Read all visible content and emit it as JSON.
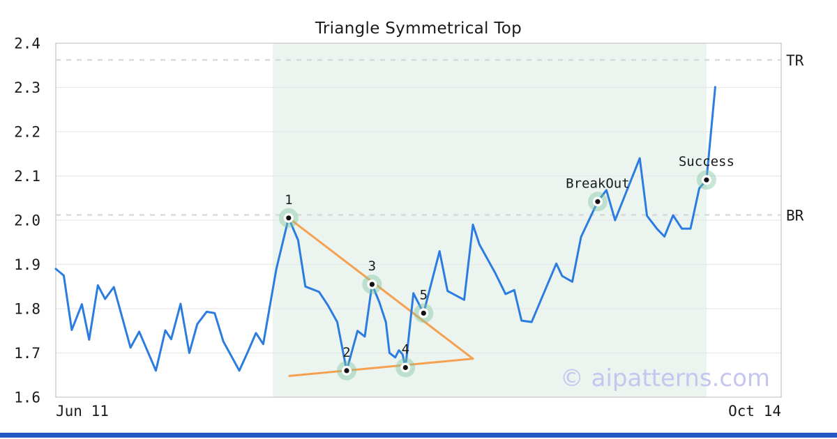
{
  "title": "Triangle Symmetrical Top",
  "watermark": "© aipatterns.com",
  "colors": {
    "price_line": "#2b7ce0",
    "trendline": "#f6a14f",
    "pattern_region": "#ebf4ef",
    "marker_halo": "rgba(124,195,158,0.42)",
    "marker_ring": "#ffffff",
    "marker_dot": "#111111",
    "gridline": "#e8e8e8",
    "plot_border": "#d0d0d0",
    "level_dash": "#d8d8d8",
    "text": "#1a1a1a",
    "watermark_text": "#c5c5f0",
    "footer_bar": "#2257c4"
  },
  "chart_data": {
    "type": "line",
    "title": "Triangle Symmetrical Top",
    "grid": true,
    "legend": false,
    "x_axis": {
      "tick_labels": [
        "Jun 11",
        "Oct 14"
      ],
      "tick_positions": [
        0,
        1
      ]
    },
    "y_axis": {
      "range": [
        1.6,
        2.4
      ],
      "ticks": [
        {
          "label": "2.4",
          "value": 2.4
        },
        {
          "label": "2.3",
          "value": 2.3
        },
        {
          "label": "2.2",
          "value": 2.2
        },
        {
          "label": "2.1",
          "value": 2.1
        },
        {
          "label": "2.0",
          "value": 2.0
        },
        {
          "label": "1.9",
          "value": 1.9
        },
        {
          "label": "1.8",
          "value": 1.8
        },
        {
          "label": "1.7",
          "value": 1.7
        },
        {
          "label": "1.6",
          "value": 1.6
        }
      ]
    },
    "levels": [
      {
        "label": "TR",
        "value": 2.362
      },
      {
        "label": "BR",
        "value": 2.012
      }
    ],
    "pattern_region": {
      "x_start": 0.299,
      "x_end": 0.897
    },
    "trendlines": [
      {
        "name": "upper-trendline",
        "from": [
          0.321,
          2.005
        ],
        "to": [
          0.575,
          1.687
        ]
      },
      {
        "name": "lower-trendline",
        "from": [
          0.322,
          1.648
        ],
        "to": [
          0.575,
          1.687
        ]
      }
    ],
    "markers": [
      {
        "label": "1",
        "x": 0.321,
        "value": 2.005
      },
      {
        "label": "2",
        "x": 0.401,
        "value": 1.66
      },
      {
        "label": "3",
        "x": 0.436,
        "value": 1.855
      },
      {
        "label": "4",
        "x": 0.482,
        "value": 1.667
      },
      {
        "label": "5",
        "x": 0.507,
        "value": 1.79
      },
      {
        "label": "BreakOut",
        "x": 0.747,
        "value": 2.042
      },
      {
        "label": "Success",
        "x": 0.897,
        "value": 2.091
      }
    ],
    "series": [
      {
        "name": "price",
        "points": [
          [
            0.0,
            1.89
          ],
          [
            0.011,
            1.875
          ],
          [
            0.022,
            1.752
          ],
          [
            0.036,
            1.81
          ],
          [
            0.046,
            1.73
          ],
          [
            0.058,
            1.853
          ],
          [
            0.068,
            1.822
          ],
          [
            0.08,
            1.849
          ],
          [
            0.103,
            1.712
          ],
          [
            0.115,
            1.748
          ],
          [
            0.138,
            1.66
          ],
          [
            0.151,
            1.751
          ],
          [
            0.159,
            1.731
          ],
          [
            0.172,
            1.811
          ],
          [
            0.184,
            1.7
          ],
          [
            0.195,
            1.765
          ],
          [
            0.208,
            1.793
          ],
          [
            0.219,
            1.79
          ],
          [
            0.231,
            1.726
          ],
          [
            0.253,
            1.66
          ],
          [
            0.264,
            1.7
          ],
          [
            0.276,
            1.745
          ],
          [
            0.286,
            1.72
          ],
          [
            0.304,
            1.89
          ],
          [
            0.321,
            2.005
          ],
          [
            0.334,
            1.955
          ],
          [
            0.344,
            1.85
          ],
          [
            0.363,
            1.838
          ],
          [
            0.375,
            1.808
          ],
          [
            0.388,
            1.77
          ],
          [
            0.401,
            1.66
          ],
          [
            0.416,
            1.75
          ],
          [
            0.426,
            1.737
          ],
          [
            0.436,
            1.855
          ],
          [
            0.446,
            1.815
          ],
          [
            0.455,
            1.77
          ],
          [
            0.46,
            1.7
          ],
          [
            0.468,
            1.69
          ],
          [
            0.473,
            1.706
          ],
          [
            0.478,
            1.697
          ],
          [
            0.482,
            1.667
          ],
          [
            0.493,
            1.835
          ],
          [
            0.507,
            1.79
          ],
          [
            0.529,
            1.93
          ],
          [
            0.54,
            1.84
          ],
          [
            0.563,
            1.82
          ],
          [
            0.575,
            1.99
          ],
          [
            0.584,
            1.945
          ],
          [
            0.606,
            1.88
          ],
          [
            0.62,
            1.833
          ],
          [
            0.632,
            1.842
          ],
          [
            0.642,
            1.773
          ],
          [
            0.656,
            1.77
          ],
          [
            0.69,
            1.902
          ],
          [
            0.698,
            1.874
          ],
          [
            0.712,
            1.861
          ],
          [
            0.724,
            1.962
          ],
          [
            0.747,
            2.042
          ],
          [
            0.759,
            2.068
          ],
          [
            0.771,
            2.0
          ],
          [
            0.805,
            2.14
          ],
          [
            0.815,
            2.01
          ],
          [
            0.829,
            1.98
          ],
          [
            0.839,
            1.963
          ],
          [
            0.851,
            2.011
          ],
          [
            0.863,
            1.981
          ],
          [
            0.875,
            1.981
          ],
          [
            0.887,
            2.072
          ],
          [
            0.897,
            2.091
          ],
          [
            0.909,
            2.301
          ]
        ]
      }
    ]
  }
}
